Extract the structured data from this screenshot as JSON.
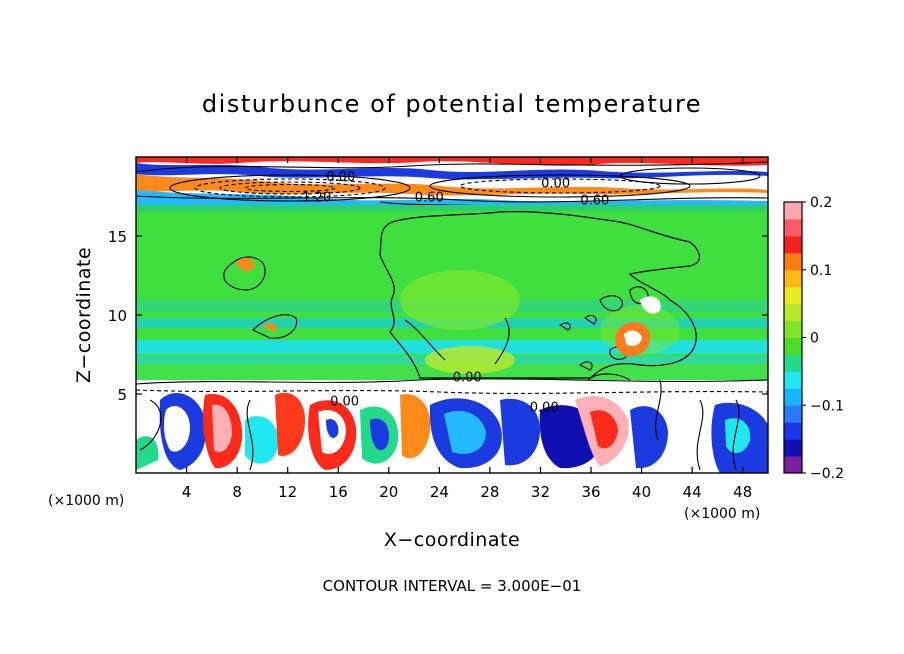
{
  "chart_data": {
    "type": "heatmap",
    "title": "disturbunce of potential temperature",
    "xlabel": "X−coordinate",
    "ylabel": "Z−coordinate",
    "x_unit_left": "(×1000 m)",
    "x_unit_right": "(×1000 m)",
    "xlim": [
      0,
      50
    ],
    "ylim": [
      0,
      20
    ],
    "x_ticks": [
      4,
      8,
      12,
      16,
      20,
      24,
      28,
      32,
      36,
      40,
      44,
      48
    ],
    "y_ticks": [
      5,
      10,
      15
    ],
    "footer": "CONTOUR INTERVAL = 3.000E−01",
    "colorbar": {
      "min": -0.2,
      "max": 0.2,
      "ticks": [
        0.2,
        0.1,
        0,
        -0.1,
        -0.2
      ],
      "tick_labels": [
        "0.2",
        "0.1",
        "0",
        "−0.1",
        "−0.2"
      ],
      "colors": [
        "#7e1fa0",
        "#1010b0",
        "#1b36e8",
        "#2a78ff",
        "#19b4ff",
        "#1fe8f0",
        "#23d98a",
        "#4cdd2a",
        "#7fe32a",
        "#b9e829",
        "#e7ea1c",
        "#fbb814",
        "#fb7d14",
        "#f5221b",
        "#fc5a66",
        "#fca7ae"
      ]
    },
    "contour_labels": [
      {
        "text": "0.00",
        "x": 16.2,
        "y": 18.8
      },
      {
        "text": "0.00",
        "x": 33.2,
        "y": 18.4
      },
      {
        "text": "0.60",
        "x": 23.2,
        "y": 17.5
      },
      {
        "text": "0.60",
        "x": 36.3,
        "y": 17.3
      },
      {
        "text": "1.20",
        "x": 14.3,
        "y": 17.5
      },
      {
        "text": "0.00",
        "x": 26.2,
        "y": 6.1
      },
      {
        "text": "0.00",
        "x": 16.5,
        "y": 4.6
      },
      {
        "text": "0.00",
        "x": 32.3,
        "y": 4.2
      }
    ]
  }
}
